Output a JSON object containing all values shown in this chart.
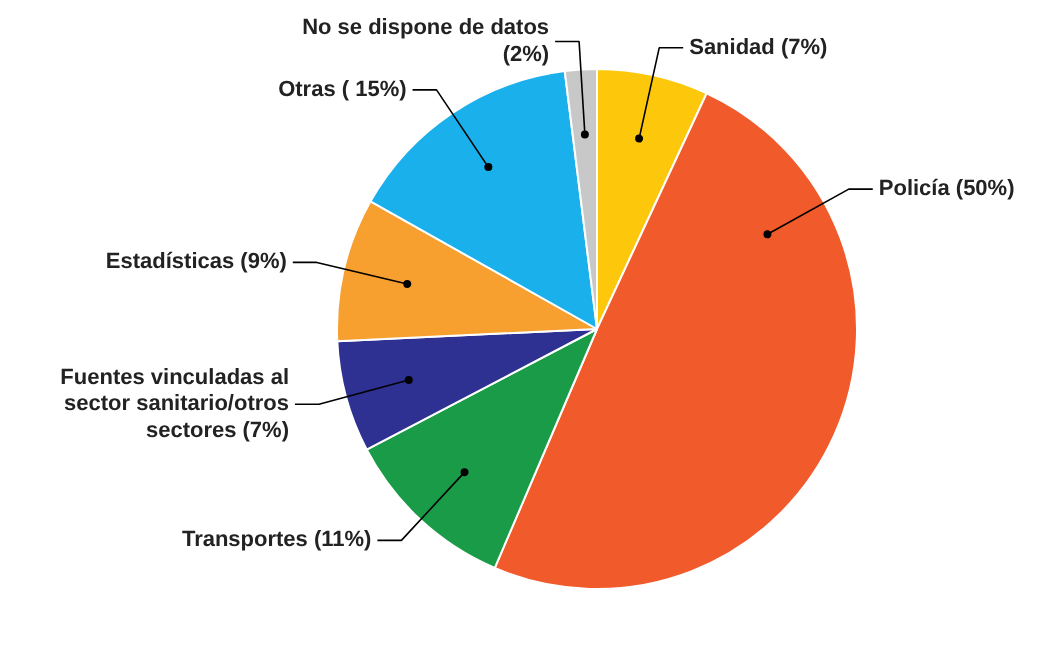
{
  "chart_data": {
    "type": "pie",
    "categories": [
      "Sanidad",
      "Policía",
      "Transportes",
      "Fuentes vinculadas al sector sanitario/otros sectores",
      "Estadísticas",
      "Otras",
      "No se dispone de datos"
    ],
    "values": [
      7,
      50,
      11,
      7,
      9,
      15,
      2
    ],
    "value_labels": [
      "(7%)",
      "(50%)",
      "(11%)",
      "(7%)",
      "(9%)",
      "( 15%)",
      "(2%)"
    ],
    "colors": [
      "#fdc80c",
      "#f15a2b",
      "#1a9b48",
      "#2e3192",
      "#f7a030",
      "#1ab0ec",
      "#c8c8c8"
    ]
  }
}
